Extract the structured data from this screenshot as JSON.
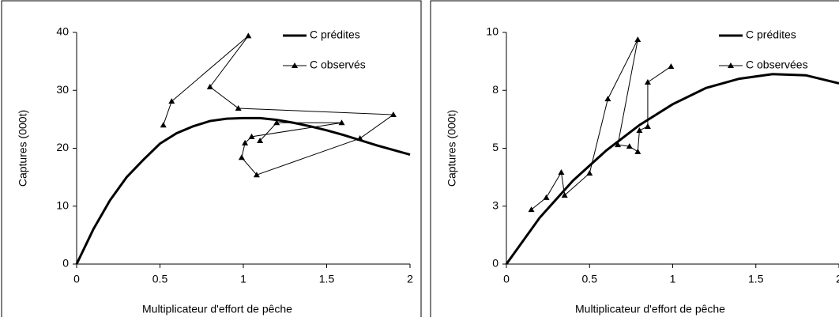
{
  "chart_data": [
    {
      "type": "line",
      "xlabel": "Multiplicateur d'effort de pêche",
      "ylabel": "Captures (000t)",
      "xlim": [
        0,
        2
      ],
      "ylim": [
        0,
        40
      ],
      "xticks": [
        0,
        0.5,
        1,
        1.5,
        2
      ],
      "yticks": [
        0,
        10,
        20,
        30,
        40
      ],
      "series": [
        {
          "name": "C prédites",
          "color": "#000000",
          "x": [
            0,
            0.1,
            0.2,
            0.3,
            0.4,
            0.5,
            0.6,
            0.7,
            0.8,
            0.9,
            1.0,
            1.1,
            1.2,
            1.3,
            1.4,
            1.5,
            1.6,
            1.7,
            1.8,
            1.9,
            2.0
          ],
          "values": [
            0,
            6,
            11,
            15,
            18,
            20.8,
            22.6,
            23.8,
            24.7,
            25.1,
            25.2,
            25.2,
            24.9,
            24.4,
            23.8,
            23.1,
            22.3,
            21.4,
            20.5,
            19.7,
            18.9
          ]
        },
        {
          "name": "C observés",
          "color": "#000000",
          "marker": "triangle",
          "x": [
            0.52,
            0.57,
            1.03,
            0.8,
            0.97,
            1.9,
            1.7,
            1.08,
            0.99,
            1.01,
            1.05,
            1.59,
            1.2,
            1.1
          ],
          "values": [
            24.0,
            28.1,
            39.4,
            30.6,
            26.9,
            25.8,
            21.7,
            15.4,
            18.4,
            20.9,
            22.0,
            24.4,
            24.4,
            21.3
          ]
        }
      ]
    },
    {
      "type": "line",
      "xlabel": "Multiplicateur d'effort de pêche",
      "ylabel": "Captures (000t)",
      "xlim": [
        0,
        2
      ],
      "ylim": [
        0,
        10
      ],
      "xticks": [
        0,
        0.5,
        1,
        1.5,
        2
      ],
      "yticks": [
        0,
        {
          "value": 2.5,
          "label": "3"
        },
        5,
        {
          "value": 7.5,
          "label": "8"
        },
        10
      ],
      "series": [
        {
          "name": "C prédites",
          "color": "#000000",
          "x": [
            0,
            0.2,
            0.4,
            0.6,
            0.8,
            1.0,
            1.2,
            1.4,
            1.6,
            1.8,
            2.0
          ],
          "values": [
            0,
            2.0,
            3.6,
            4.9,
            6.0,
            6.9,
            7.6,
            8.0,
            8.2,
            8.15,
            7.8
          ]
        },
        {
          "name": "C observées",
          "color": "#000000",
          "marker": "triangle",
          "x": [
            0.15,
            0.24,
            0.33,
            0.35,
            0.5,
            0.61,
            0.79,
            0.67,
            0.74,
            0.79,
            0.8,
            0.85,
            0.85,
            0.99
          ],
          "values": [
            2.35,
            2.87,
            3.96,
            2.97,
            3.92,
            7.13,
            9.69,
            5.15,
            5.08,
            4.85,
            5.77,
            5.94,
            7.85,
            8.53
          ]
        }
      ]
    }
  ]
}
